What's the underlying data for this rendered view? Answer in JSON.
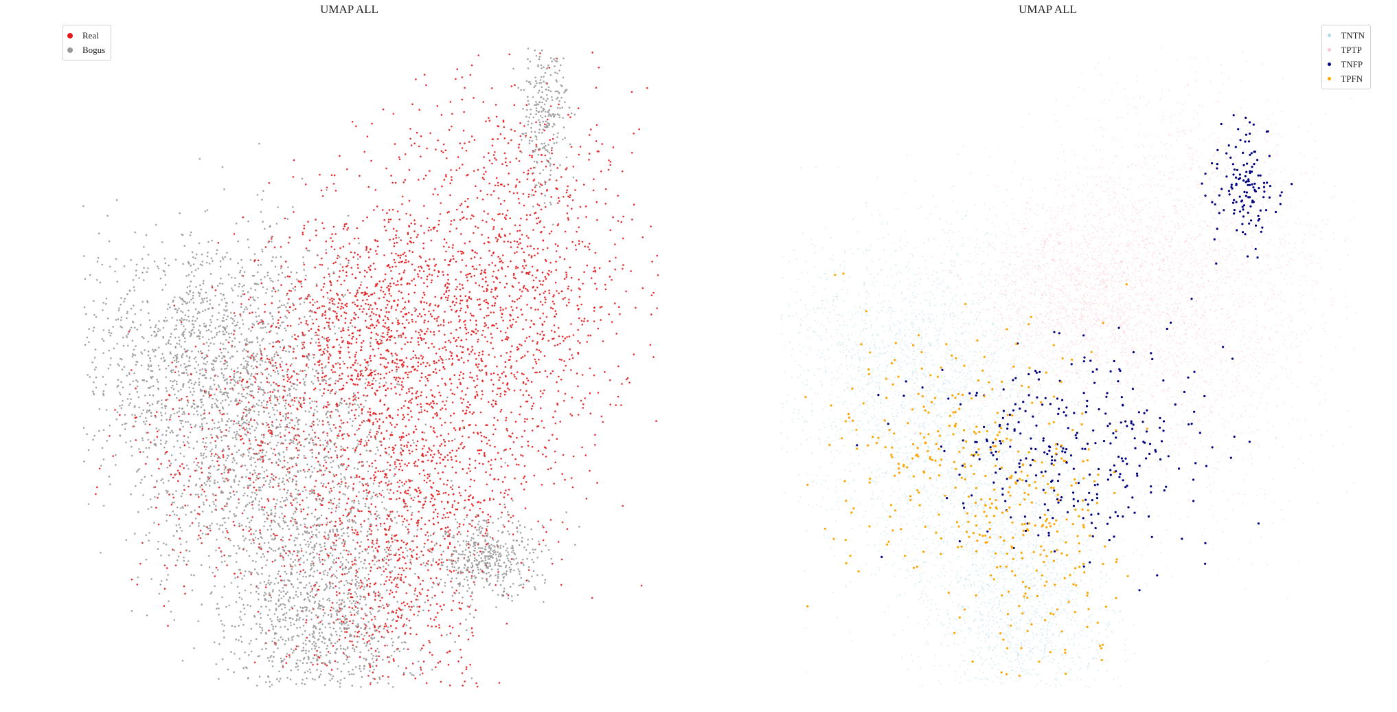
{
  "chart_data": [
    {
      "type": "scatter",
      "title": "UMAP ALL",
      "xlabel": "",
      "ylabel": "",
      "axes": "off",
      "grid": false,
      "legend_position": "top-left",
      "series": [
        {
          "name": "Real",
          "color": "#e41a1c",
          "approx_points": 9000,
          "regions": [
            {
              "center": [
                0.72,
                0.62
              ],
              "spread": [
                0.12,
                0.16
              ],
              "weight": 0.36
            },
            {
              "center": [
                0.48,
                0.55
              ],
              "spread": [
                0.1,
                0.1
              ],
              "weight": 0.24
            },
            {
              "center": [
                0.58,
                0.3
              ],
              "spread": [
                0.1,
                0.1
              ],
              "weight": 0.18
            },
            {
              "center": [
                0.52,
                0.12
              ],
              "spread": [
                0.08,
                0.1
              ],
              "weight": 0.1
            },
            {
              "center": [
                0.3,
                0.35
              ],
              "spread": [
                0.12,
                0.1
              ],
              "weight": 0.12
            }
          ]
        },
        {
          "name": "Bogus",
          "color": "#999999",
          "approx_points": 9000,
          "regions": [
            {
              "center": [
                0.22,
                0.52
              ],
              "spread": [
                0.12,
                0.1
              ],
              "weight": 0.36
            },
            {
              "center": [
                0.35,
                0.3
              ],
              "spread": [
                0.12,
                0.1
              ],
              "weight": 0.26
            },
            {
              "center": [
                0.42,
                0.1
              ],
              "spread": [
                0.08,
                0.08
              ],
              "weight": 0.22
            },
            {
              "center": [
                0.8,
                0.9
              ],
              "spread": [
                0.02,
                0.06
              ],
              "weight": 0.06
            },
            {
              "center": [
                0.7,
                0.2
              ],
              "spread": [
                0.05,
                0.03
              ],
              "weight": 0.1
            }
          ]
        }
      ]
    },
    {
      "type": "scatter",
      "title": "UMAP ALL",
      "xlabel": "",
      "ylabel": "",
      "axes": "off",
      "grid": false,
      "legend_position": "top-right",
      "series": [
        {
          "name": "TNTN",
          "color": "#add8e6",
          "approx_points": 8000,
          "regions": [
            {
              "center": [
                0.22,
                0.52
              ],
              "spread": [
                0.12,
                0.1
              ],
              "weight": 0.4
            },
            {
              "center": [
                0.35,
                0.3
              ],
              "spread": [
                0.12,
                0.1
              ],
              "weight": 0.35
            },
            {
              "center": [
                0.42,
                0.1
              ],
              "spread": [
                0.08,
                0.08
              ],
              "weight": 0.25
            }
          ]
        },
        {
          "name": "TPTP",
          "color": "#ffc0cb",
          "approx_points": 7000,
          "regions": [
            {
              "center": [
                0.72,
                0.62
              ],
              "spread": [
                0.12,
                0.16
              ],
              "weight": 0.55
            },
            {
              "center": [
                0.52,
                0.62
              ],
              "spread": [
                0.1,
                0.08
              ],
              "weight": 0.45
            }
          ]
        },
        {
          "name": "TNFP",
          "color": "#000080",
          "approx_points": 450,
          "regions": [
            {
              "center": [
                0.5,
                0.38
              ],
              "spread": [
                0.12,
                0.08
              ],
              "weight": 0.7
            },
            {
              "center": [
                0.8,
                0.78
              ],
              "spread": [
                0.03,
                0.05
              ],
              "weight": 0.3
            }
          ]
        },
        {
          "name": "TPFN",
          "color": "#ffa500",
          "approx_points": 450,
          "regions": [
            {
              "center": [
                0.3,
                0.38
              ],
              "spread": [
                0.12,
                0.1
              ],
              "weight": 0.6
            },
            {
              "center": [
                0.45,
                0.2
              ],
              "spread": [
                0.08,
                0.1
              ],
              "weight": 0.4
            }
          ]
        }
      ]
    }
  ]
}
